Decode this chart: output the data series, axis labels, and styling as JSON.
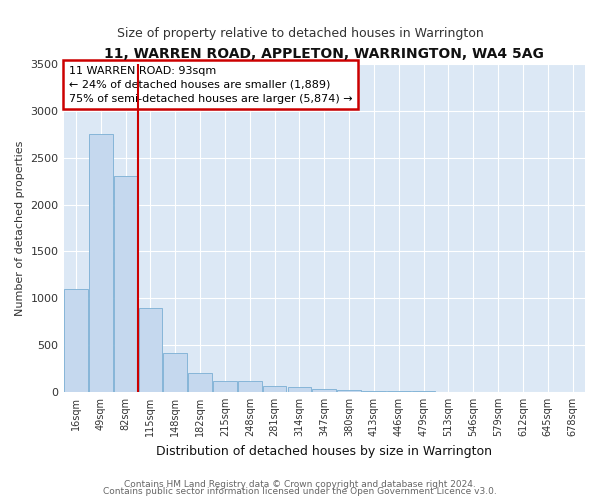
{
  "title": "11, WARREN ROAD, APPLETON, WARRINGTON, WA4 5AG",
  "subtitle": "Size of property relative to detached houses in Warrington",
  "xlabel": "Distribution of detached houses by size in Warrington",
  "ylabel": "Number of detached properties",
  "bar_color": "#c5d8ee",
  "bar_edge_color": "#7aafd4",
  "plot_bg_color": "#dce8f5",
  "fig_bg_color": "#ffffff",
  "grid_color": "#ffffff",
  "categories": [
    "16sqm",
    "49sqm",
    "82sqm",
    "115sqm",
    "148sqm",
    "182sqm",
    "215sqm",
    "248sqm",
    "281sqm",
    "314sqm",
    "347sqm",
    "380sqm",
    "413sqm",
    "446sqm",
    "479sqm",
    "513sqm",
    "546sqm",
    "579sqm",
    "612sqm",
    "645sqm",
    "678sqm"
  ],
  "values": [
    1100,
    2750,
    2300,
    900,
    420,
    200,
    120,
    120,
    65,
    55,
    35,
    25,
    15,
    5,
    5,
    3,
    2,
    1,
    1,
    1,
    0
  ],
  "red_line_x": 2.5,
  "annotation_title": "11 WARREN ROAD: 93sqm",
  "annotation_line1": "← 24% of detached houses are smaller (1,889)",
  "annotation_line2": "75% of semi-detached houses are larger (5,874) →",
  "yticks": [
    0,
    500,
    1000,
    1500,
    2000,
    2500,
    3000,
    3500
  ],
  "ylim": [
    0,
    3500
  ],
  "footer1": "Contains HM Land Registry data © Crown copyright and database right 2024.",
  "footer2": "Contains public sector information licensed under the Open Government Licence v3.0."
}
